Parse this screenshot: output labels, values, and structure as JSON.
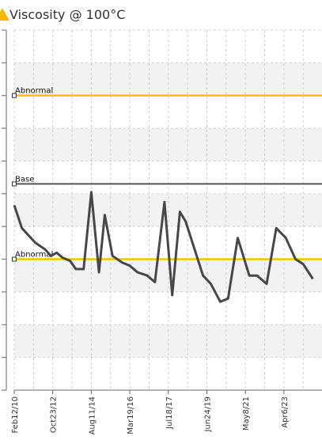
{
  "colors": {
    "warning_line": "#f5c400",
    "base_line": "#555555",
    "series_line": "#474747",
    "grid": "#cfcfcf",
    "band": "#f2f2f2",
    "warning_icon": "#f5b800"
  },
  "icon": "warning-triangle-icon",
  "chart_data": {
    "type": "line",
    "title": "Viscosity @ 100°C",
    "xlabel": "",
    "ylabel": "",
    "grid": true,
    "x_ticks": [
      "Feb12/10",
      "Oct23/12",
      "Aug11/14",
      "Mar19/16",
      "Jul18/17",
      "Jun24/19",
      "May8/21",
      "Apr6/23"
    ],
    "ylim": [
      0,
      11
    ],
    "reference_lines": [
      {
        "label": "Abnormal",
        "value": 9.0,
        "style": "warning"
      },
      {
        "label": "Base",
        "value": 6.3,
        "style": "base"
      },
      {
        "label": "Abnormal",
        "value": 4.0,
        "style": "warning"
      }
    ],
    "series": [
      {
        "points": [
          [
            0.0,
            5.65
          ],
          [
            0.2,
            4.95
          ],
          [
            0.55,
            4.5
          ],
          [
            0.8,
            4.3
          ],
          [
            0.95,
            4.1
          ],
          [
            1.1,
            4.2
          ],
          [
            1.25,
            4.05
          ],
          [
            1.45,
            3.95
          ],
          [
            1.6,
            3.7
          ],
          [
            1.8,
            3.7
          ],
          [
            2.0,
            6.05
          ],
          [
            2.2,
            3.6
          ],
          [
            2.35,
            5.35
          ],
          [
            2.55,
            4.1
          ],
          [
            2.8,
            3.9
          ],
          [
            3.0,
            3.8
          ],
          [
            3.2,
            3.6
          ],
          [
            3.45,
            3.5
          ],
          [
            3.65,
            3.3
          ],
          [
            3.9,
            5.75
          ],
          [
            4.1,
            2.9
          ],
          [
            4.3,
            5.45
          ],
          [
            4.45,
            5.15
          ],
          [
            4.9,
            3.5
          ],
          [
            5.1,
            3.25
          ],
          [
            5.35,
            2.7
          ],
          [
            5.55,
            2.8
          ],
          [
            5.8,
            4.65
          ],
          [
            6.1,
            3.5
          ],
          [
            6.3,
            3.5
          ],
          [
            6.55,
            3.25
          ],
          [
            6.8,
            4.95
          ],
          [
            7.05,
            4.65
          ],
          [
            7.3,
            4.0
          ],
          [
            7.5,
            3.85
          ],
          [
            7.75,
            3.4
          ]
        ]
      }
    ]
  }
}
